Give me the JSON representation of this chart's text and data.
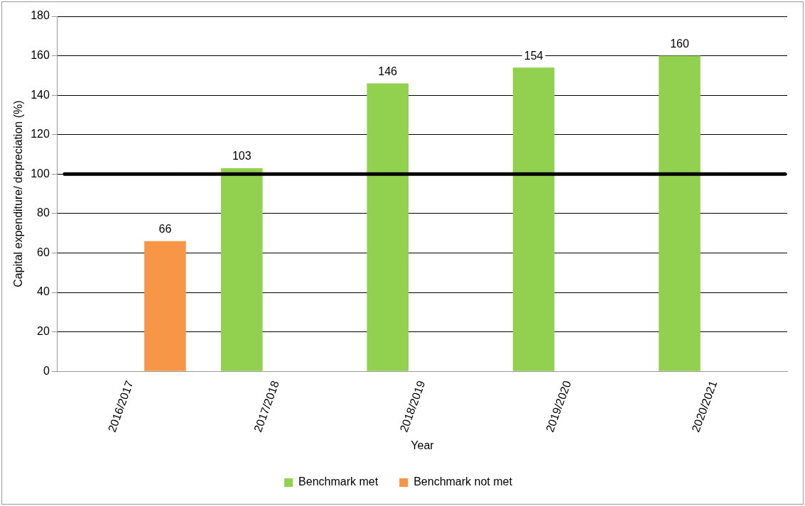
{
  "chart_data": {
    "type": "bar",
    "categories": [
      "2016/2017",
      "2017/2018",
      "2018/2019",
      "2019/2020",
      "2020/2021"
    ],
    "series": [
      {
        "name": "Benchmark met",
        "color": "#92d050",
        "values": [
          null,
          103,
          146,
          154,
          160
        ]
      },
      {
        "name": "Benchmark not met",
        "color": "#f79646",
        "values": [
          66,
          null,
          null,
          null,
          null
        ]
      }
    ],
    "xlabel": "Year",
    "ylabel": "Capital expenditure/ depreciation (%)",
    "ylim": [
      0,
      180
    ],
    "yticks": [
      0,
      20,
      40,
      60,
      80,
      100,
      120,
      140,
      160,
      180
    ],
    "grid": "y",
    "legend": "bottom",
    "data_labels": true,
    "ref_lines": [
      {
        "axis": "y",
        "value": 100,
        "color": "#000000"
      }
    ]
  }
}
